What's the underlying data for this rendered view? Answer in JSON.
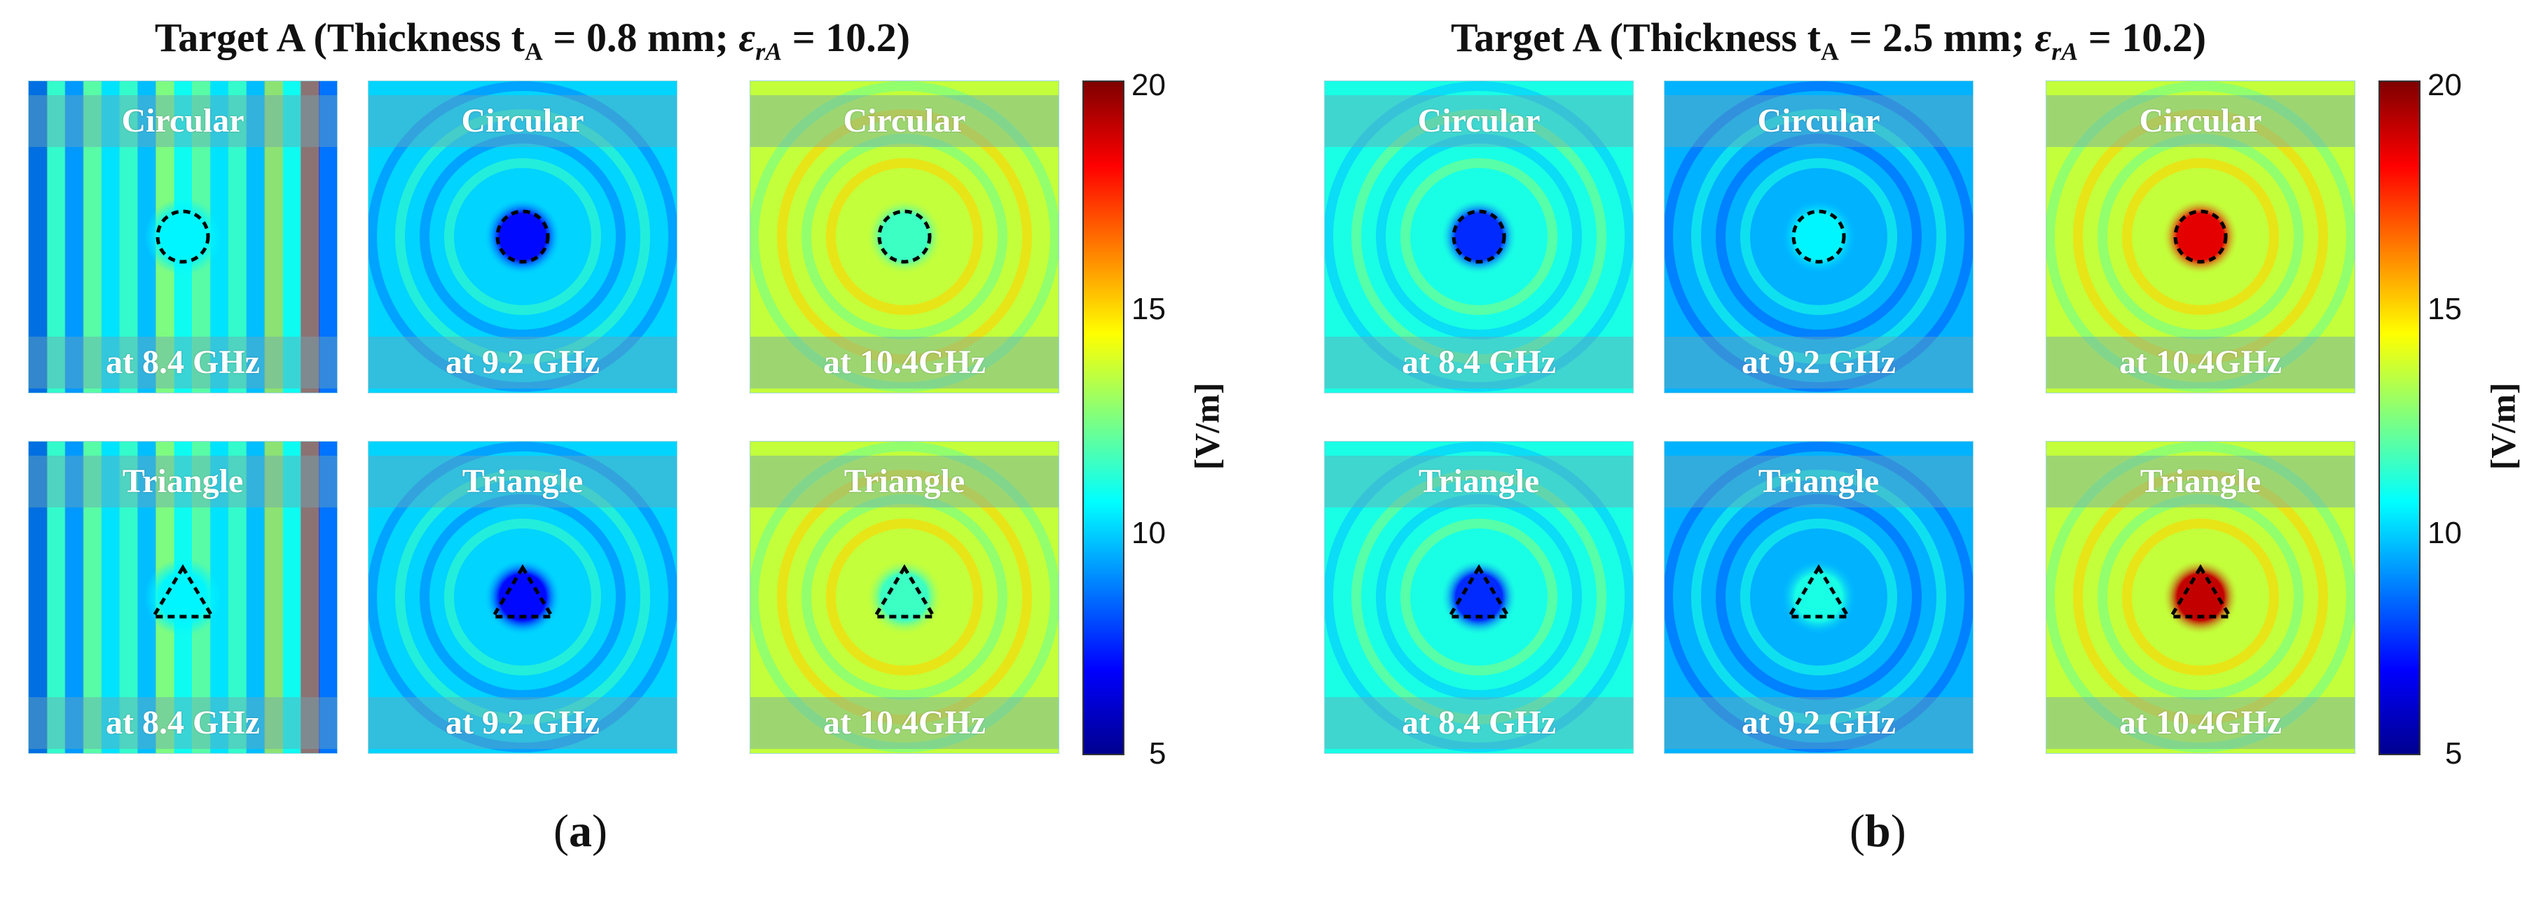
{
  "panels": [
    {
      "id": "a",
      "title_prefix": "Target A (Thickness t",
      "title_sub": "A",
      "title_mid": " = 0.8 mm; ",
      "title_eps": "ε",
      "title_eps_sub": "rA",
      "title_end": " = 10.2)",
      "label": "a",
      "colorbar": {
        "min": 5,
        "max": 20,
        "ticks": [
          "20",
          "15",
          "10",
          "5"
        ],
        "unit": "[V/m]"
      }
    },
    {
      "id": "b",
      "title_prefix": "Target A (Thickness t",
      "title_sub": "A",
      "title_mid": " = 2.5 mm; ",
      "title_eps": "ε",
      "title_eps_sub": "rA",
      "title_end": " = 10.2)",
      "label": "b",
      "colorbar": {
        "min": 5,
        "max": 20,
        "ticks": [
          "20",
          "15",
          "10",
          "5"
        ],
        "unit": "[V/m]"
      }
    }
  ],
  "chart_data": [
    {
      "type": "heatmap",
      "title": "Target A (Thickness tA = 0.8 mm; εrA = 10.2)",
      "colorbar_range": [
        5,
        20
      ],
      "colorbar_unit": "[V/m]",
      "rows": [
        "Circular",
        "Triangle"
      ],
      "columns": [
        "at 8.4 GHz",
        "at 9.2 GHz",
        "at 10.4GHz"
      ],
      "maps": [
        [
          {
            "shape": "Circular",
            "freq": "at 8.4 GHz",
            "background": 10.5,
            "center": 10.5,
            "pattern": "stripes"
          },
          {
            "shape": "Circular",
            "freq": "at 9.2 GHz",
            "background": 10.0,
            "center": 7.0,
            "pattern": "rings"
          },
          {
            "shape": "Circular",
            "freq": "at 10.4GHz",
            "background": 13.5,
            "center": 11.5,
            "pattern": "rings"
          }
        ],
        [
          {
            "shape": "Triangle",
            "freq": "at 8.4 GHz",
            "background": 10.5,
            "center": 10.5,
            "pattern": "stripes"
          },
          {
            "shape": "Triangle",
            "freq": "at 9.2 GHz",
            "background": 10.0,
            "center": 7.0,
            "pattern": "rings"
          },
          {
            "shape": "Triangle",
            "freq": "at 10.4GHz",
            "background": 13.5,
            "center": 11.5,
            "pattern": "rings"
          }
        ]
      ]
    },
    {
      "type": "heatmap",
      "title": "Target A (Thickness tA = 2.5 mm; εrA = 10.2)",
      "colorbar_range": [
        5,
        20
      ],
      "colorbar_unit": "[V/m]",
      "rows": [
        "Circular",
        "Triangle"
      ],
      "columns": [
        "at 8.4 GHz",
        "at 9.2 GHz",
        "at 10.4GHz"
      ],
      "maps": [
        [
          {
            "shape": "Circular",
            "freq": "at 8.4 GHz",
            "background": 11.0,
            "center": 7.5,
            "pattern": "rings"
          },
          {
            "shape": "Circular",
            "freq": "at 9.2 GHz",
            "background": 9.5,
            "center": 10.5,
            "pattern": "rings"
          },
          {
            "shape": "Circular",
            "freq": "at 10.4GHz",
            "background": 13.5,
            "center": 18.5,
            "pattern": "rings"
          }
        ],
        [
          {
            "shape": "Triangle",
            "freq": "at 8.4 GHz",
            "background": 11.0,
            "center": 7.5,
            "pattern": "rings"
          },
          {
            "shape": "Triangle",
            "freq": "at 9.2 GHz",
            "background": 9.5,
            "center": 11.0,
            "pattern": "rings"
          },
          {
            "shape": "Triangle",
            "freq": "at 10.4GHz",
            "background": 13.5,
            "center": 19.0,
            "pattern": "rings"
          }
        ]
      ]
    }
  ]
}
